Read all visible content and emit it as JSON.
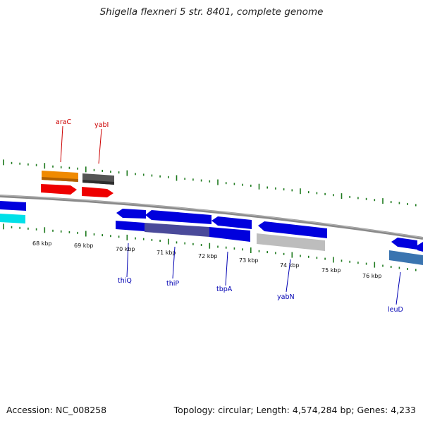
{
  "title": "Shigella flexneri 5 str. 8401, complete genome",
  "footer": {
    "accession": "Accession: NC_008258",
    "stats": "Topology: circular; Length: 4,574,284 bp; Genes: 4,233"
  },
  "colors": {
    "backbone": "#8a8a8a",
    "tick": "#1e7a1e",
    "forward_label": "#cc0000",
    "reverse_label": "#0000b3",
    "orange": "#f08a00",
    "dark_gray": "#555555",
    "red": "#ee0000",
    "blue": "#0000dd",
    "cyan": "#00e0e8",
    "slate": "#4a4a9a",
    "light_gray": "#bdbdbd",
    "steel_blue": "#3a74b0"
  },
  "ticks": {
    "labels": [
      "68 kbp",
      "69 kbp",
      "70 kbp",
      "71 kbp",
      "72 kbp",
      "73 kbp",
      "74 kbp",
      "75 kbp",
      "76 kbp"
    ]
  },
  "labels": {
    "forward": [
      "araC",
      "yabI"
    ],
    "reverse": [
      "thiQ",
      "thiP",
      "tbpA",
      "yabN",
      "leuD"
    ]
  }
}
